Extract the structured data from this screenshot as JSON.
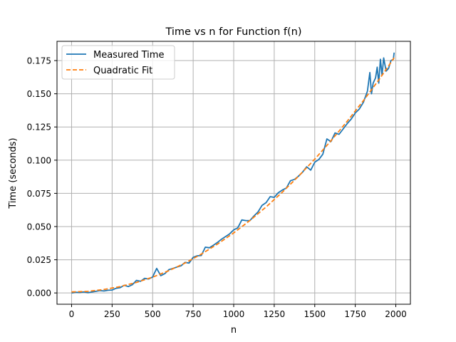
{
  "chart_data": {
    "type": "line",
    "title": "Time vs n for Function f(n)",
    "xlabel": "n",
    "ylabel": "Time (seconds)",
    "xlim": [
      -90,
      2090
    ],
    "ylim": [
      -0.0085,
      0.1895
    ],
    "xticks": [
      0,
      250,
      500,
      750,
      1000,
      1250,
      1500,
      1750,
      2000
    ],
    "xtick_labels": [
      "0",
      "250",
      "500",
      "750",
      "1000",
      "1250",
      "1500",
      "1750",
      "2000"
    ],
    "yticks": [
      0.0,
      0.025,
      0.05,
      0.075,
      0.1,
      0.125,
      0.15,
      0.175
    ],
    "ytick_labels": [
      "0.000",
      "0.025",
      "0.050",
      "0.075",
      "0.100",
      "0.125",
      "0.150",
      "0.175"
    ],
    "grid": true,
    "legend_position": "upper-left",
    "series": [
      {
        "name": "Measured Time",
        "style": "solid",
        "color": "#1f77b4",
        "x": [
          0,
          25,
          50,
          75,
          100,
          125,
          150,
          175,
          200,
          225,
          250,
          275,
          300,
          325,
          350,
          375,
          400,
          425,
          450,
          475,
          500,
          525,
          550,
          575,
          600,
          625,
          650,
          675,
          700,
          725,
          750,
          775,
          800,
          825,
          850,
          875,
          900,
          925,
          950,
          975,
          1000,
          1025,
          1050,
          1075,
          1100,
          1125,
          1150,
          1175,
          1200,
          1225,
          1250,
          1275,
          1300,
          1325,
          1350,
          1375,
          1400,
          1425,
          1450,
          1475,
          1500,
          1525,
          1550,
          1575,
          1600,
          1625,
          1650,
          1675,
          1700,
          1725,
          1750,
          1775,
          1800,
          1825,
          1840,
          1850,
          1860,
          1875,
          1885,
          1895,
          1905,
          1915,
          1925,
          1940,
          1955,
          1970,
          1985,
          1990
        ],
        "y": [
          0.0,
          0.0005,
          0.0003,
          0.0008,
          0.0002,
          0.0007,
          0.0012,
          0.0018,
          0.0015,
          0.002,
          0.0022,
          0.0035,
          0.004,
          0.0058,
          0.0048,
          0.0062,
          0.0095,
          0.0088,
          0.011,
          0.0105,
          0.012,
          0.0185,
          0.013,
          0.0145,
          0.0175,
          0.0185,
          0.0195,
          0.0205,
          0.023,
          0.0225,
          0.0268,
          0.028,
          0.0282,
          0.0345,
          0.034,
          0.036,
          0.038,
          0.0405,
          0.0425,
          0.0445,
          0.0475,
          0.049,
          0.055,
          0.0545,
          0.0545,
          0.058,
          0.061,
          0.066,
          0.068,
          0.0725,
          0.072,
          0.0755,
          0.0775,
          0.079,
          0.0845,
          0.0855,
          0.088,
          0.091,
          0.095,
          0.0925,
          0.0985,
          0.1005,
          0.1045,
          0.116,
          0.114,
          0.1205,
          0.1195,
          0.1235,
          0.1275,
          0.131,
          0.1355,
          0.1385,
          0.1435,
          0.152,
          0.166,
          0.15,
          0.158,
          0.162,
          0.17,
          0.158,
          0.176,
          0.164,
          0.177,
          0.167,
          0.169,
          0.175,
          0.176,
          0.181
        ]
      },
      {
        "name": "Quadratic Fit",
        "style": "dashed",
        "color": "#ff7f0e",
        "x": [
          0,
          100,
          200,
          300,
          400,
          500,
          600,
          700,
          800,
          900,
          1000,
          1100,
          1200,
          1300,
          1400,
          1500,
          1600,
          1700,
          1800,
          1900,
          1990
        ],
        "y": [
          0.0008,
          0.0012,
          0.0026,
          0.0048,
          0.0079,
          0.0119,
          0.0168,
          0.0225,
          0.0292,
          0.0368,
          0.0452,
          0.0546,
          0.0648,
          0.0759,
          0.0879,
          0.1008,
          0.1146,
          0.1293,
          0.1448,
          0.1613,
          0.1771
        ]
      }
    ]
  }
}
